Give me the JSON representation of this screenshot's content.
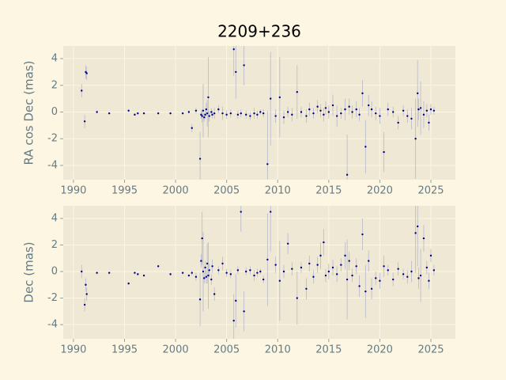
{
  "title": "2209+236",
  "chart_data": [
    {
      "type": "scatter",
      "ylabel": "RA cos Dec (mas)",
      "color": "#00008b",
      "error_color": "#b8b8c8",
      "x": [
        1990.8,
        1991.1,
        1991.2,
        1991.3,
        1992.3,
        1993.5,
        1995.4,
        1996.0,
        1996.3,
        1996.9,
        1998.3,
        1999.5,
        2000.7,
        2001.3,
        2001.6,
        2002.0,
        2002.4,
        2002.5,
        2002.6,
        2002.7,
        2002.8,
        2002.9,
        2003.0,
        2003.1,
        2003.2,
        2003.3,
        2003.5,
        2003.6,
        2003.8,
        2004.2,
        2004.6,
        2005.0,
        2005.4,
        2005.7,
        2005.9,
        2006.1,
        2006.4,
        2006.7,
        2006.9,
        2007.3,
        2007.7,
        2008.0,
        2008.3,
        2008.6,
        2009.0,
        2009.3,
        2009.8,
        2010.2,
        2010.6,
        2011.0,
        2011.4,
        2011.9,
        2012.3,
        2012.8,
        2013.1,
        2013.5,
        2013.9,
        2014.2,
        2014.5,
        2014.7,
        2015.0,
        2015.4,
        2015.8,
        2016.2,
        2016.6,
        2016.8,
        2017.0,
        2017.3,
        2017.7,
        2018.0,
        2018.3,
        2018.6,
        2018.9,
        2019.2,
        2019.6,
        2020.0,
        2020.4,
        2020.8,
        2021.3,
        2021.8,
        2022.3,
        2022.7,
        2023.1,
        2023.5,
        2023.7,
        2023.8,
        2024.0,
        2024.3,
        2024.6,
        2024.8,
        2025.0,
        2025.3
      ],
      "values": [
        1.6,
        -0.7,
        3.0,
        2.9,
        0.0,
        -0.1,
        0.1,
        -0.2,
        -0.1,
        -0.1,
        -0.1,
        -0.1,
        -0.1,
        0.0,
        -1.2,
        0.1,
        -3.5,
        -0.2,
        -0.3,
        0.1,
        -0.4,
        -0.2,
        0.2,
        -0.1,
        1.1,
        -0.3,
        0.0,
        -0.2,
        -0.1,
        0.2,
        -0.1,
        -0.2,
        -0.1,
        4.7,
        3.0,
        -0.2,
        -0.1,
        3.5,
        -0.2,
        -0.3,
        -0.1,
        -0.2,
        0.0,
        -0.1,
        -3.9,
        1.0,
        -0.3,
        1.1,
        -0.4,
        0.0,
        -0.2,
        1.5,
        0.0,
        -0.3,
        0.2,
        -0.1,
        0.4,
        0.1,
        -0.2,
        0.3,
        0.0,
        0.5,
        -0.3,
        -0.1,
        0.2,
        -4.7,
        0.4,
        0.0,
        0.2,
        -0.2,
        1.4,
        -2.6,
        0.5,
        0.2,
        -0.1,
        -0.3,
        -3.0,
        0.2,
        0.0,
        -0.8,
        0.1,
        -0.3,
        -0.5,
        -2.0,
        1.4,
        0.2,
        0.3,
        -0.2,
        0.1,
        -0.8,
        0.2,
        0.1
      ],
      "errors": [
        0.5,
        0.5,
        0.5,
        0.5,
        0.1,
        0.1,
        0.1,
        0.1,
        0.1,
        0.1,
        0.1,
        0.1,
        0.1,
        0.1,
        0.3,
        0.2,
        2.0,
        0.3,
        0.5,
        2.0,
        0.3,
        0.3,
        0.5,
        1.0,
        3.0,
        0.4,
        0.3,
        0.3,
        0.4,
        0.3,
        0.5,
        0.3,
        0.3,
        2.0,
        2.0,
        0.3,
        0.3,
        1.5,
        0.3,
        0.3,
        0.4,
        0.3,
        0.2,
        0.3,
        4.0,
        3.5,
        0.5,
        3.0,
        0.5,
        0.4,
        0.5,
        2.0,
        0.4,
        0.5,
        0.5,
        0.4,
        0.5,
        0.5,
        0.5,
        0.5,
        0.5,
        0.8,
        0.8,
        0.4,
        0.8,
        3.0,
        0.6,
        0.5,
        0.6,
        0.5,
        1.0,
        2.0,
        0.8,
        0.6,
        0.5,
        0.6,
        1.5,
        0.5,
        0.4,
        0.5,
        0.4,
        0.5,
        0.8,
        3.0,
        2.5,
        0.8,
        2.0,
        1.0,
        0.5,
        0.6,
        0.4,
        0.3
      ],
      "xlim": [
        1989.0,
        2027.4
      ],
      "ylim": [
        -5.07,
        4.95
      ],
      "xticks": [
        1990,
        1995,
        2000,
        2005,
        2010,
        2015,
        2020,
        2025
      ],
      "yticks": [
        -4,
        -2,
        0,
        2,
        4
      ],
      "grid": true
    },
    {
      "type": "scatter",
      "ylabel": "Dec (mas)",
      "color": "#00008b",
      "error_color": "#b8b8c8",
      "x": [
        1990.8,
        1991.1,
        1991.2,
        1991.3,
        1992.3,
        1993.5,
        1995.4,
        1996.0,
        1996.3,
        1996.9,
        1998.3,
        1999.5,
        2000.7,
        2001.3,
        2001.6,
        2002.0,
        2002.4,
        2002.5,
        2002.6,
        2002.7,
        2002.8,
        2002.9,
        2003.0,
        2003.1,
        2003.2,
        2003.3,
        2003.5,
        2003.6,
        2003.8,
        2004.2,
        2004.6,
        2005.0,
        2005.4,
        2005.7,
        2005.9,
        2006.1,
        2006.4,
        2006.7,
        2006.9,
        2007.3,
        2007.7,
        2008.0,
        2008.3,
        2008.6,
        2009.0,
        2009.3,
        2009.8,
        2010.2,
        2010.6,
        2011.0,
        2011.4,
        2011.9,
        2012.3,
        2012.8,
        2013.1,
        2013.5,
        2013.9,
        2014.2,
        2014.5,
        2014.7,
        2015.0,
        2015.4,
        2015.8,
        2016.2,
        2016.6,
        2016.8,
        2017.0,
        2017.3,
        2017.7,
        2018.0,
        2018.3,
        2018.6,
        2018.9,
        2019.2,
        2019.6,
        2020.0,
        2020.4,
        2020.8,
        2021.3,
        2021.8,
        2022.3,
        2022.7,
        2023.1,
        2023.5,
        2023.7,
        2023.8,
        2024.0,
        2024.3,
        2024.6,
        2024.8,
        2025.0,
        2025.3
      ],
      "values": [
        0.0,
        -2.5,
        -1.0,
        -1.7,
        -0.1,
        -0.1,
        -0.9,
        -0.1,
        -0.2,
        -0.3,
        0.4,
        -0.2,
        -0.1,
        -0.3,
        -0.1,
        -0.4,
        -2.1,
        0.8,
        2.5,
        0.0,
        -0.5,
        0.3,
        -0.4,
        0.6,
        -0.3,
        0.1,
        -0.6,
        0.4,
        -1.7,
        0.1,
        0.6,
        -0.1,
        -0.2,
        -3.7,
        -2.2,
        0.1,
        4.5,
        -3.0,
        0.0,
        0.1,
        -0.3,
        -0.1,
        0.0,
        -0.6,
        0.9,
        4.5,
        0.5,
        -0.7,
        0.0,
        2.1,
        0.2,
        -2.0,
        0.3,
        -1.3,
        0.6,
        -0.4,
        0.5,
        1.2,
        2.2,
        -0.3,
        0.0,
        0.3,
        -0.2,
        0.5,
        1.2,
        -0.6,
        0.8,
        -0.3,
        0.4,
        -1.1,
        2.8,
        -1.5,
        0.8,
        -1.3,
        -0.5,
        -0.7,
        0.4,
        0.1,
        -0.6,
        0.2,
        -0.2,
        -0.4,
        0.0,
        2.9,
        3.4,
        -0.5,
        -0.3,
        2.5,
        0.3,
        -0.7,
        1.2,
        0.1
      ],
      "errors": [
        0.5,
        0.5,
        0.5,
        0.5,
        0.1,
        0.1,
        0.1,
        0.1,
        0.1,
        0.1,
        0.1,
        0.1,
        0.1,
        0.1,
        0.2,
        0.3,
        2.0,
        0.5,
        2.0,
        3.0,
        0.4,
        0.5,
        0.5,
        1.5,
        2.5,
        0.5,
        0.4,
        0.5,
        0.5,
        0.3,
        0.5,
        0.3,
        0.3,
        2.0,
        2.0,
        0.3,
        1.5,
        1.5,
        0.3,
        0.3,
        0.4,
        0.3,
        0.2,
        0.3,
        3.5,
        3.0,
        0.6,
        3.0,
        0.5,
        0.8,
        0.5,
        2.0,
        0.4,
        0.8,
        0.6,
        0.5,
        0.6,
        1.0,
        1.0,
        0.5,
        0.6,
        0.6,
        0.6,
        0.5,
        1.0,
        3.0,
        0.7,
        0.5,
        0.6,
        0.8,
        1.2,
        2.0,
        0.8,
        0.8,
        0.5,
        0.6,
        0.8,
        0.4,
        0.5,
        0.5,
        0.4,
        0.5,
        0.8,
        3.0,
        3.0,
        0.8,
        2.0,
        1.0,
        0.5,
        0.6,
        0.5,
        0.4
      ],
      "xlim": [
        1989.0,
        2027.4
      ],
      "ylim": [
        -5.07,
        4.95
      ],
      "xticks": [
        1990,
        1995,
        2000,
        2005,
        2010,
        2015,
        2020,
        2025
      ],
      "yticks": [
        -4,
        -2,
        0,
        2,
        4
      ],
      "grid": true
    }
  ]
}
